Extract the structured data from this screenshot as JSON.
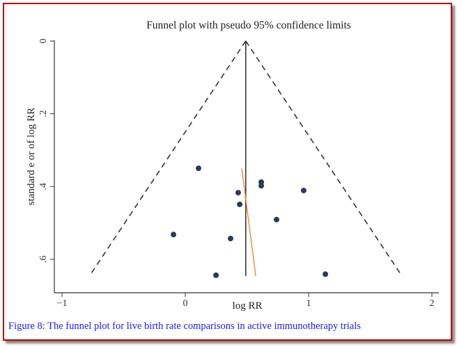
{
  "chart_data": {
    "type": "scatter",
    "title": "Funnel plot with pseudo 95% confidence limits",
    "xlabel": "log RR",
    "ylabel": "standard e  or of log RR",
    "xlim": [
      -1,
      2
    ],
    "ylim": [
      0,
      0.65
    ],
    "y_reversed": true,
    "xticks": [
      -1,
      0,
      1,
      2
    ],
    "xtick_labels": [
      "−1",
      "0",
      "1",
      "2"
    ],
    "yticks": [
      0,
      0.2,
      0.4,
      0.6
    ],
    "ytick_labels": [
      "0",
      ".2",
      ".4",
      ".6"
    ],
    "grid": false,
    "points": [
      {
        "x": 0.107,
        "y": 0.35
      },
      {
        "x": 0.616,
        "y": 0.388
      },
      {
        "x": 0.616,
        "y": 0.398
      },
      {
        "x": 0.96,
        "y": 0.411
      },
      {
        "x": 0.429,
        "y": 0.417
      },
      {
        "x": 0.441,
        "y": 0.449
      },
      {
        "x": 0.74,
        "y": 0.491
      },
      {
        "x": -0.096,
        "y": 0.532
      },
      {
        "x": 0.367,
        "y": 0.543
      },
      {
        "x": 0.249,
        "y": 0.644
      },
      {
        "x": 1.136,
        "y": 0.641
      }
    ],
    "pooled_estimate": 0.49,
    "funnel_bottom_se": 0.646,
    "funnel_limits_at_bottom": [
      -0.777,
      1.757
    ],
    "regression_line": [
      {
        "x": 0.458,
        "y": 0.35
      },
      {
        "x": 0.571,
        "y": 0.646
      }
    ],
    "colors": {
      "points": "#2b3a5c",
      "regression": "#f08a30",
      "lines": "#333333"
    }
  },
  "caption": "Figure 8: The funnel plot for live birth rate comparisons in active immunotherapy trials"
}
